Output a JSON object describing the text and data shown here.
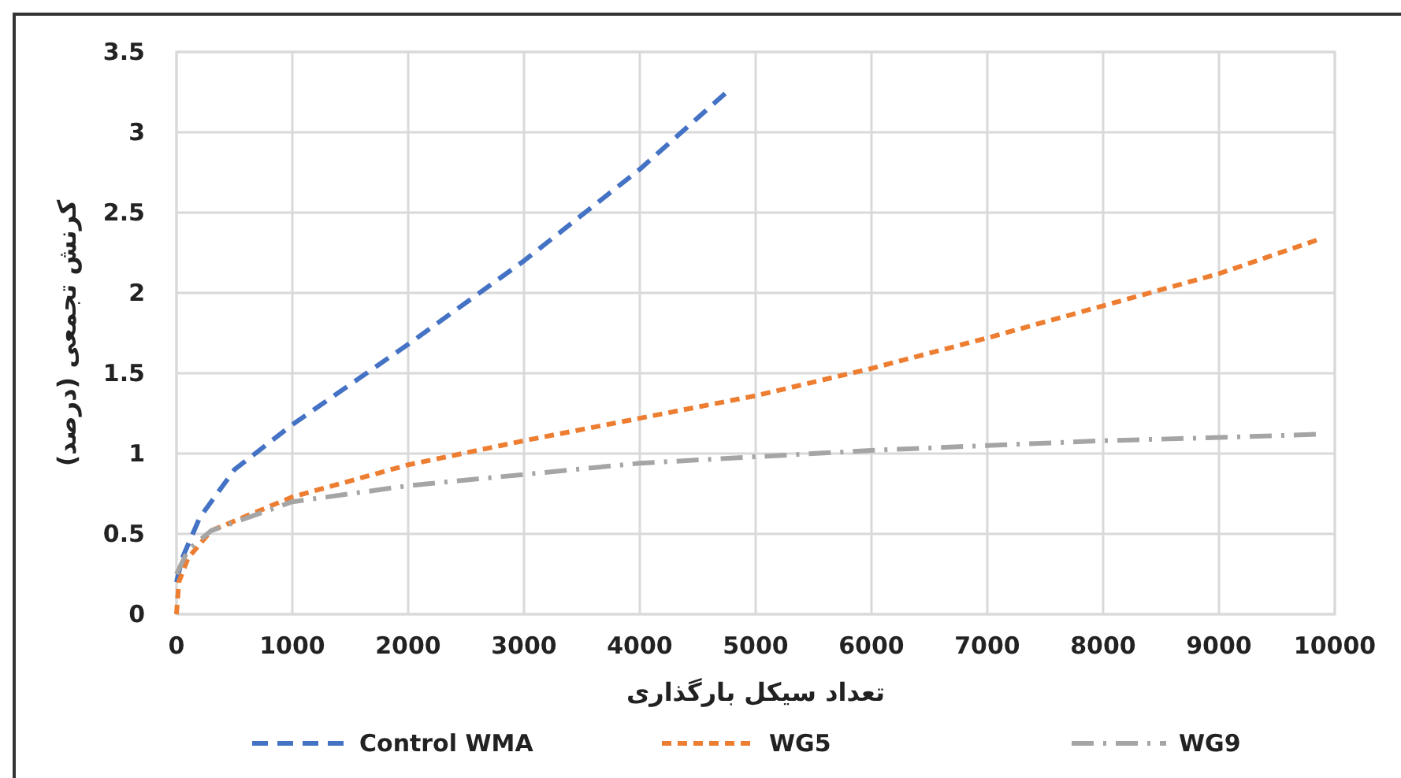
{
  "chart_data": {
    "type": "line",
    "xlabel": "تعداد سیکل بارگذاری",
    "ylabel": "کرنش تجمعی (درصد)",
    "xlim": [
      0,
      10000
    ],
    "xticks": [
      0,
      1000,
      2000,
      3000,
      4000,
      5000,
      6000,
      7000,
      8000,
      9000,
      10000
    ],
    "ylim": [
      0,
      3.5
    ],
    "yticks": [
      0,
      0.5,
      1,
      1.5,
      2,
      2.5,
      3,
      3.5
    ],
    "grid": true,
    "legend": "bottom",
    "marker": "none",
    "series": [
      {
        "name": "Control WMA",
        "color": "#4472c4",
        "line_style": "dashed",
        "x": [
          0,
          50,
          200,
          500,
          1000,
          2000,
          3000,
          4000,
          4750
        ],
        "values": [
          0.2,
          0.35,
          0.6,
          0.9,
          1.18,
          1.68,
          2.2,
          2.77,
          3.25
        ]
      },
      {
        "name": "WG5",
        "color": "#ed7d31",
        "line_style": "dashed",
        "x": [
          0,
          20,
          100,
          300,
          1000,
          2000,
          3000,
          4000,
          5000,
          6000,
          7000,
          8000,
          9000,
          9850
        ],
        "values": [
          0,
          0.2,
          0.35,
          0.52,
          0.73,
          0.93,
          1.08,
          1.22,
          1.36,
          1.53,
          1.72,
          1.92,
          2.12,
          2.33
        ]
      },
      {
        "name": "WG9",
        "color": "#a5a5a5",
        "line_style": "dashdot",
        "x": [
          0,
          100,
          300,
          1000,
          2000,
          3000,
          4000,
          5000,
          6000,
          7000,
          8000,
          9000,
          9850
        ],
        "values": [
          0.25,
          0.4,
          0.52,
          0.7,
          0.8,
          0.87,
          0.94,
          0.98,
          1.02,
          1.05,
          1.08,
          1.1,
          1.12
        ]
      }
    ]
  }
}
